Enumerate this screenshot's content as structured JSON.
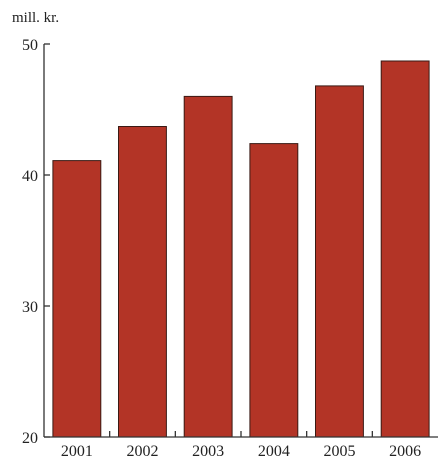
{
  "chart_data": {
    "type": "bar",
    "title": "",
    "xlabel": "",
    "ylabel": "mill. kr.",
    "categories": [
      "2001",
      "2002",
      "2003",
      "2004",
      "2005",
      "2006"
    ],
    "values": [
      41.1,
      43.7,
      46.0,
      42.4,
      46.8,
      48.7
    ],
    "ylim": [
      20,
      50
    ],
    "yticks": [
      20,
      30,
      40,
      50
    ],
    "grid": false,
    "legend": "none",
    "colors": {
      "bar": "#b33426",
      "bar_edge": "#3a1a14",
      "axis": "#333333"
    }
  }
}
